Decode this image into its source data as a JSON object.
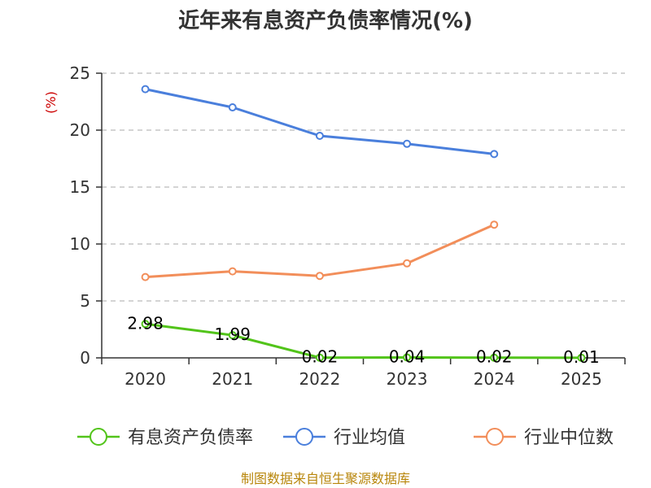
{
  "chart_data": {
    "type": "line",
    "title": "近年来有息资产负债率情况(%)",
    "ylabel": "(%)",
    "xlabel": "",
    "categories": [
      "2020",
      "2021",
      "2022",
      "2023",
      "2024",
      "2025"
    ],
    "ylim": [
      0,
      25
    ],
    "yticks": [
      "0",
      "5",
      "10",
      "15",
      "20",
      "25"
    ],
    "grid": true,
    "legend_position": "bottom",
    "series": [
      {
        "name": "有息资产负债率",
        "color": "#52c41a",
        "values": [
          2.98,
          1.99,
          0.02,
          0.04,
          0.02,
          0.01
        ],
        "labels": [
          "2.98",
          "1.99",
          "0.02",
          "0.04",
          "0.02",
          "0.01"
        ]
      },
      {
        "name": "行业均值",
        "color": "#4a7fdc",
        "values": [
          23.6,
          22.0,
          19.5,
          18.8,
          17.9,
          null
        ],
        "labels": []
      },
      {
        "name": "行业中位数",
        "color": "#f28e5a",
        "values": [
          7.1,
          7.6,
          7.2,
          8.3,
          11.7,
          null
        ],
        "labels": []
      }
    ],
    "source": "制图数据来自恒生聚源数据库"
  }
}
